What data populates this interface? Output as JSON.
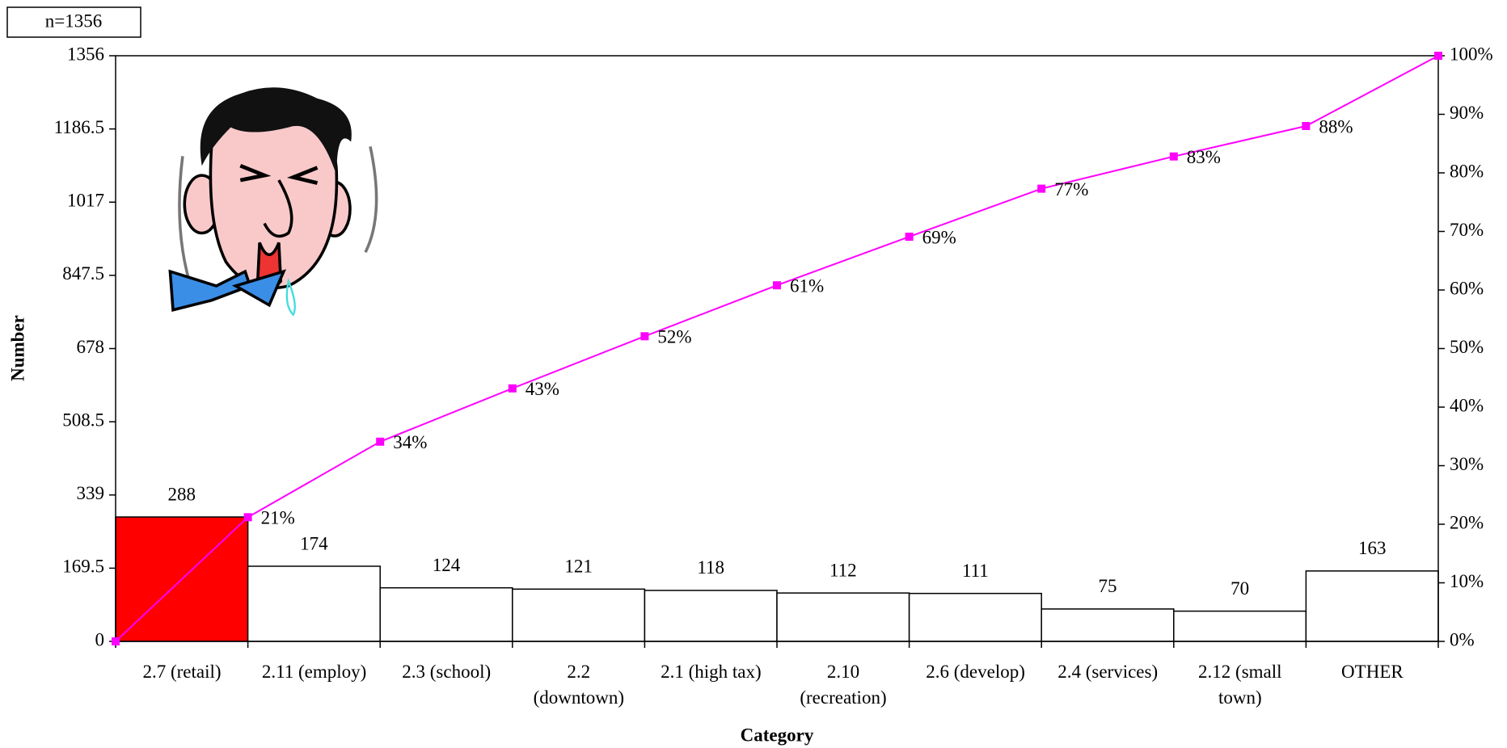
{
  "chart_data": {
    "type": "pareto",
    "sample_note": "n=1356",
    "y_axis_label": "Number",
    "x_axis_label": "Category",
    "categories": [
      "2.7 (retail)",
      "2.11 (employ)",
      "2.3 (school)",
      "2.2\n(downtown)",
      "2.1 (high tax)",
      "2.10\n(recreation)",
      "2.6 (develop)",
      "2.4 (services)",
      "2.12 (small\ntown)",
      "OTHER"
    ],
    "values": [
      288,
      174,
      124,
      121,
      118,
      112,
      111,
      75,
      70,
      163
    ],
    "colors": [
      "#ff0000",
      "#ffffff",
      "#ffffff",
      "#ffffff",
      "#ffffff",
      "#ffffff",
      "#ffffff",
      "#ffffff",
      "#ffffff",
      "#ffffff"
    ],
    "ylim": [
      0,
      1356
    ],
    "yticks": [
      0,
      169.5,
      339,
      508.5,
      678,
      847.5,
      1017,
      1186.5,
      1356
    ],
    "cumulative": {
      "color": "#ff00ff",
      "axis": "y2",
      "values": [
        0,
        21.2,
        34.1,
        43.2,
        52.1,
        60.8,
        69.1,
        77.3,
        82.8,
        88.0,
        100
      ],
      "value_labels": [
        null,
        "21%",
        "34%",
        "43%",
        "52%",
        "61%",
        "69%",
        "77%",
        "83%",
        "88%",
        null
      ]
    },
    "y2lim": [
      0,
      100
    ],
    "y2ticks": [
      {
        "value": 0,
        "label": "0%"
      },
      {
        "value": 10,
        "label": "10%"
      },
      {
        "value": 20,
        "label": "20%"
      },
      {
        "value": 30,
        "label": "30%"
      },
      {
        "value": 40,
        "label": "40%"
      },
      {
        "value": 50,
        "label": "50%"
      },
      {
        "value": 60,
        "label": "60%"
      },
      {
        "value": 70,
        "label": "70%"
      },
      {
        "value": 80,
        "label": "80%"
      },
      {
        "value": 90,
        "label": "90%"
      },
      {
        "value": 100,
        "label": "100%"
      }
    ]
  }
}
